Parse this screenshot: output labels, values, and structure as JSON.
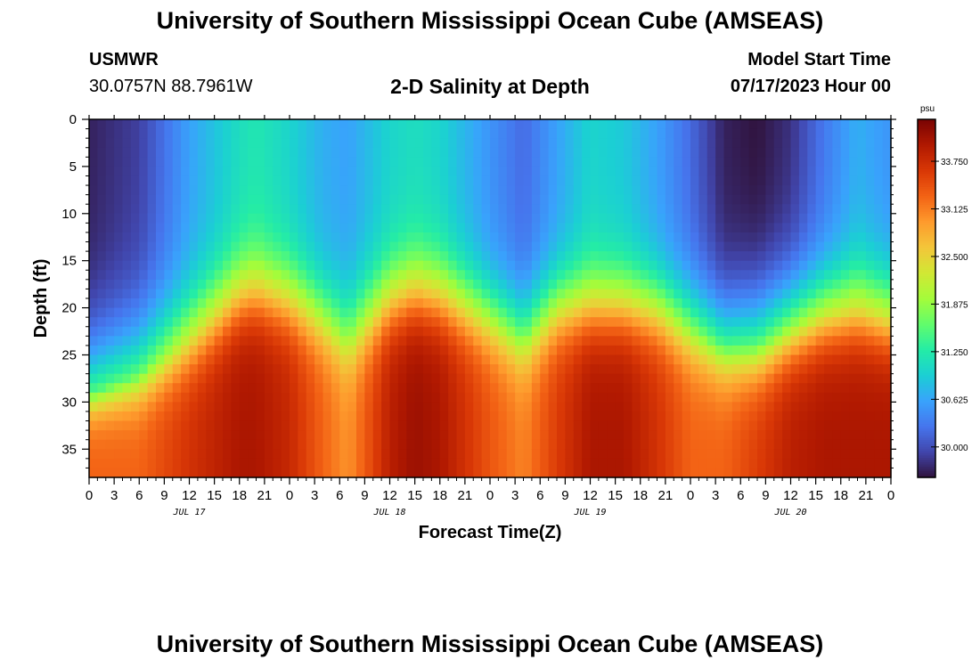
{
  "header": {
    "title": "University of Southern Mississippi Ocean Cube (AMSEAS)",
    "station": "USMWR",
    "coordinates": "30.0757N  88.7961W",
    "plot_title": "2-D Salinity at Depth",
    "model_start_label": "Model Start Time",
    "model_start_value": "07/17/2023 Hour 00"
  },
  "footer": {
    "title": "University of Southern Mississippi Ocean Cube (AMSEAS)"
  },
  "chart_data": {
    "type": "heatmap",
    "title": "2-D Salinity at Depth",
    "xlabel": "Forecast Time(Z)",
    "ylabel": "Depth (ft)",
    "x_range_hours": [
      0,
      96
    ],
    "xlim": [
      0,
      96
    ],
    "ylim": [
      0,
      38
    ],
    "y_inverted": true,
    "x_tick_labels": [
      "0",
      "3",
      "6",
      "9",
      "12",
      "15",
      "18",
      "21",
      "0",
      "3",
      "6",
      "9",
      "12",
      "15",
      "18",
      "21",
      "0",
      "3",
      "6",
      "9",
      "12",
      "15",
      "18",
      "21",
      "0",
      "3",
      "6",
      "9",
      "12",
      "15",
      "18",
      "21",
      "0"
    ],
    "y_ticks": [
      0,
      5,
      10,
      15,
      20,
      25,
      30,
      35
    ],
    "y_tick_labels": [
      "0",
      "5",
      "10",
      "15",
      "20",
      "25",
      "30",
      "35"
    ],
    "day_labels": [
      {
        "label": "JUL 17",
        "hour": 12
      },
      {
        "label": "JUL 18",
        "hour": 36
      },
      {
        "label": "JUL 19",
        "hour": 60
      },
      {
        "label": "JUL 20",
        "hour": 84
      }
    ],
    "colorbar": {
      "units": "psu",
      "min": 29.6,
      "max": 34.3,
      "tick_values": [
        30.0,
        30.625,
        31.25,
        31.875,
        32.5,
        33.125,
        33.75
      ],
      "tick_labels": [
        "30.000",
        "30.625",
        "31.250",
        "31.875",
        "32.500",
        "33.125",
        "33.750"
      ],
      "colors": [
        "#30123b",
        "#4145ab",
        "#4675ed",
        "#39a2fc",
        "#1bcfd4",
        "#24eca6",
        "#61fc6c",
        "#a4fc3b",
        "#d1e834",
        "#f3c63a",
        "#fe9b2d",
        "#f36315",
        "#d93806",
        "#b11901",
        "#7a0403"
      ]
    },
    "profile_model": {
      "hours": [
        0,
        6,
        12,
        18,
        20,
        24,
        28,
        31,
        36,
        39,
        42,
        48,
        52,
        56,
        60,
        64,
        68,
        72,
        76,
        80,
        84,
        88,
        92,
        96
      ],
      "halocline_depth_ft": [
        29,
        27,
        23,
        18.5,
        18,
        19,
        21,
        23,
        19,
        18,
        18.5,
        21,
        23,
        20,
        19.5,
        19.5,
        20,
        22,
        24,
        24,
        22,
        20.5,
        20,
        21
      ],
      "surface_salinity_psu": [
        29.7,
        29.9,
        30.6,
        31.1,
        31.2,
        31.0,
        30.7,
        30.6,
        31.0,
        31.1,
        31.0,
        30.5,
        30.2,
        30.6,
        31.0,
        30.9,
        30.6,
        30.2,
        29.7,
        29.6,
        29.8,
        30.3,
        30.7,
        30.5
      ],
      "bottom_salinity_psu": [
        33.3,
        33.3,
        33.7,
        34.0,
        34.0,
        33.8,
        33.3,
        33.0,
        33.9,
        34.1,
        34.0,
        33.4,
        33.1,
        33.6,
        34.0,
        34.0,
        33.7,
        33.3,
        33.3,
        33.6,
        33.9,
        34.0,
        34.0,
        34.0
      ],
      "surface_layer_thickness_ft": [
        10,
        10,
        8,
        7,
        7,
        7,
        7,
        8,
        7,
        7,
        7,
        7,
        8,
        7,
        7,
        7,
        7,
        8,
        9,
        10,
        9,
        8,
        8,
        8
      ],
      "bottom_layer_thickness_ft": [
        4,
        5,
        6,
        6,
        6,
        6,
        6,
        6,
        6,
        6,
        6,
        6,
        6,
        6,
        6,
        6,
        6,
        6,
        6,
        6,
        6,
        6,
        6,
        6
      ]
    }
  }
}
